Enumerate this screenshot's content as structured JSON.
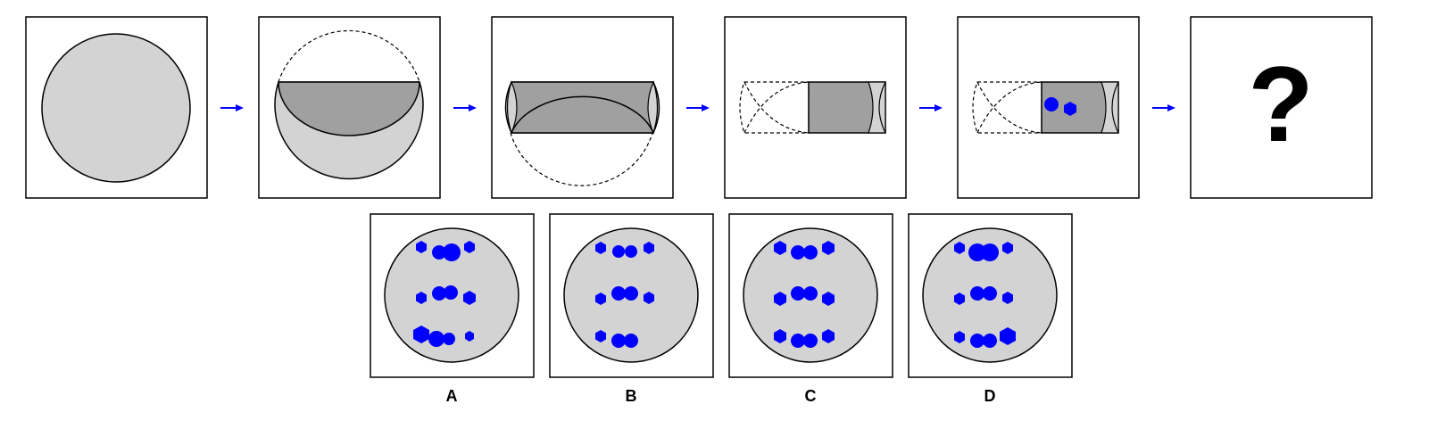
{
  "puzzle": {
    "question_mark": "?",
    "options": [
      {
        "label": "A"
      },
      {
        "label": "B"
      },
      {
        "label": "C"
      },
      {
        "label": "D"
      }
    ]
  },
  "colors": {
    "frame": "#000000",
    "light_fill": "#d3d3d3",
    "dark_fill": "#a0a0a0",
    "dot": "#0000ff",
    "arrow": "#0000ff"
  }
}
